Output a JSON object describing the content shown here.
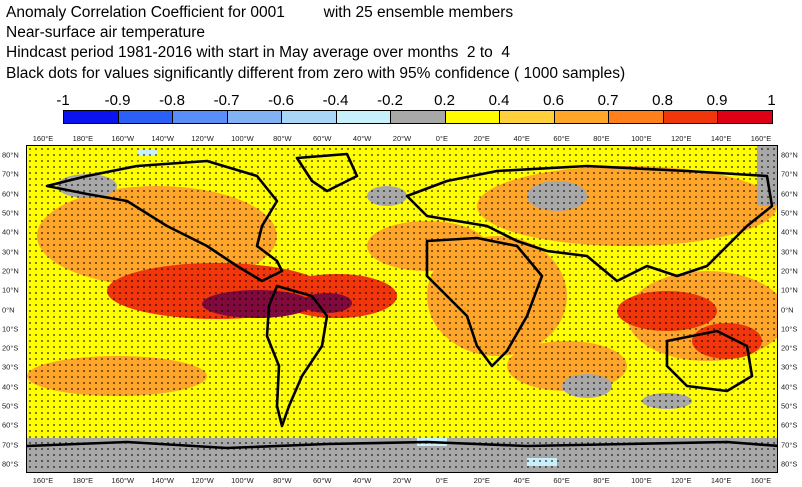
{
  "title": {
    "line1": "Anomaly Correlation Coefficient for 0001         with 25 ensemble members",
    "line2": "Near-surface air temperature",
    "line3": "Hindcast period 1981-2016 with start in May average over months  2 to  4",
    "line4": "Black dots for values significantly different from zero with 95% confidence ( 1000 samples)"
  },
  "colorbar": {
    "labels": [
      "-1",
      "-0.9",
      "-0.8",
      "-0.7",
      "-0.6",
      "-0.4",
      "-0.2",
      "0.2",
      "0.4",
      "0.6",
      "0.7",
      "0.8",
      "0.9",
      "1"
    ],
    "colors": [
      "#0a14f0",
      "#2b5ff5",
      "#5a8df5",
      "#82b2f2",
      "#a9d6f7",
      "#c8f0fb",
      "#a8a8a8",
      "#fffb00",
      "#ffcf3c",
      "#ffa52a",
      "#ff7f1a",
      "#f2360c",
      "#e00015",
      "#800a3c"
    ]
  },
  "longitude_ticks": [
    "160°E",
    "180°E",
    "160°W",
    "140°W",
    "120°W",
    "100°W",
    "80°W",
    "60°W",
    "40°W",
    "20°W",
    "0°E",
    "20°E",
    "40°E",
    "60°E",
    "80°E",
    "100°E",
    "120°E",
    "140°E",
    "160°E"
  ],
  "latitude_ticks": [
    "80°N",
    "70°N",
    "60°N",
    "50°N",
    "40°N",
    "30°N",
    "20°N",
    "10°N",
    "0°N",
    "10°S",
    "20°S",
    "30°S",
    "40°S",
    "50°S",
    "60°S",
    "70°S",
    "80°S"
  ],
  "map": {
    "land_outline_color": "#000000",
    "background_color": "#ffff00",
    "dot_color": "#000000"
  }
}
